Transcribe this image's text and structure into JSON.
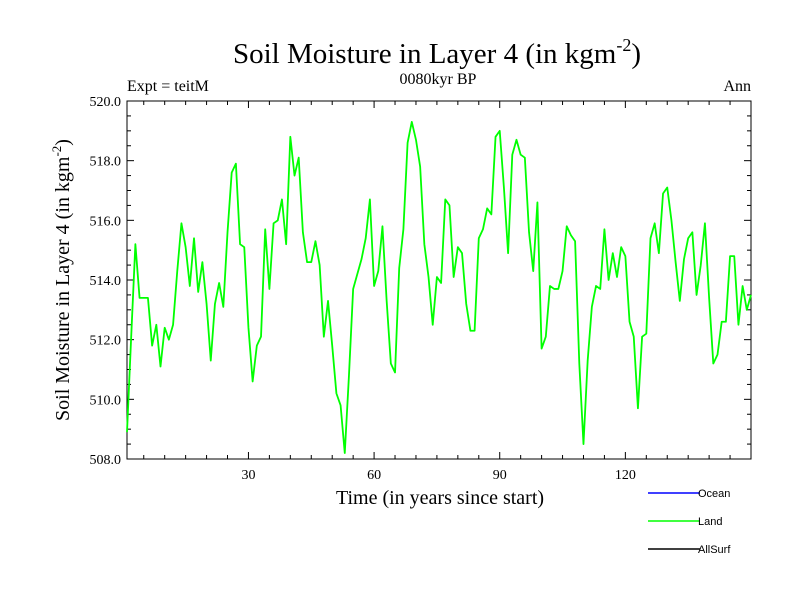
{
  "chart_data": {
    "type": "line",
    "title_main": "Soil Moisture in Layer 4 (in kgm",
    "title_sup": "-2",
    "title_close": ")",
    "subtitle_left": "Expt = teitM",
    "subtitle_center": "0080kyr BP",
    "subtitle_right": "Ann",
    "xlabel": "Time (in years since start)",
    "ylabel_main": "Soil Moisture in Layer 4 (in kgm",
    "ylabel_sup": "-2",
    "ylabel_close": ")",
    "xlim": [
      1,
      150
    ],
    "ylim": [
      508.0,
      520.0
    ],
    "x_ticks": [
      30,
      60,
      90,
      120
    ],
    "x_tick_labels": [
      "30",
      "60",
      "90",
      "120"
    ],
    "y_ticks": [
      508,
      510,
      512,
      514,
      516,
      518,
      520
    ],
    "y_tick_labels": [
      "508.0",
      "510.0",
      "512.0",
      "514.0",
      "516.0",
      "518.0",
      "520.0"
    ],
    "legend": [
      {
        "name": "Ocean",
        "color": "#0000ff"
      },
      {
        "name": "Land",
        "color": "#00ff00"
      },
      {
        "name": "AllSurf",
        "color": "#000000"
      }
    ],
    "series": [
      {
        "name": "Land",
        "color": "#00ff00",
        "x_start": 1,
        "values": [
          508.9,
          512.1,
          515.2,
          513.4,
          513.4,
          513.4,
          511.8,
          512.5,
          511.1,
          512.4,
          512.0,
          512.5,
          514.3,
          515.9,
          515.1,
          513.8,
          515.4,
          513.6,
          514.6,
          513.2,
          511.3,
          513.2,
          513.9,
          513.1,
          515.6,
          517.6,
          517.9,
          515.2,
          515.1,
          512.4,
          510.6,
          511.8,
          512.1,
          515.7,
          513.7,
          515.9,
          516.0,
          516.7,
          515.2,
          518.8,
          517.5,
          518.1,
          515.6,
          514.6,
          514.6,
          515.3,
          514.5,
          512.1,
          513.3,
          511.8,
          510.2,
          509.8,
          508.2,
          510.8,
          513.7,
          514.2,
          514.7,
          515.4,
          516.7,
          513.8,
          514.3,
          515.8,
          513.3,
          511.2,
          510.9,
          514.4,
          515.7,
          518.6,
          519.3,
          518.7,
          517.8,
          515.2,
          514.1,
          512.5,
          514.1,
          513.9,
          516.7,
          516.5,
          514.1,
          515.1,
          514.9,
          513.2,
          512.3,
          512.3,
          515.4,
          515.7,
          516.4,
          516.2,
          518.8,
          519.0,
          517.1,
          514.9,
          518.2,
          518.7,
          518.2,
          518.1,
          515.6,
          514.3,
          516.6,
          511.7,
          512.1,
          513.8,
          513.7,
          513.7,
          514.3,
          515.8,
          515.5,
          515.3,
          511.2,
          508.5,
          511.3,
          513.1,
          513.8,
          513.7,
          515.7,
          514.0,
          514.9,
          514.1,
          515.1,
          514.8,
          512.6,
          512.1,
          509.7,
          512.1,
          512.2,
          515.4,
          515.9,
          514.9,
          516.9,
          517.1,
          516.0,
          514.6,
          513.3,
          514.7,
          515.4,
          515.6,
          513.5,
          514.5,
          515.9,
          513.4,
          511.2,
          511.5,
          512.6,
          512.6,
          514.8,
          514.8,
          512.5,
          513.8,
          513.0,
          513.5
        ]
      }
    ]
  }
}
